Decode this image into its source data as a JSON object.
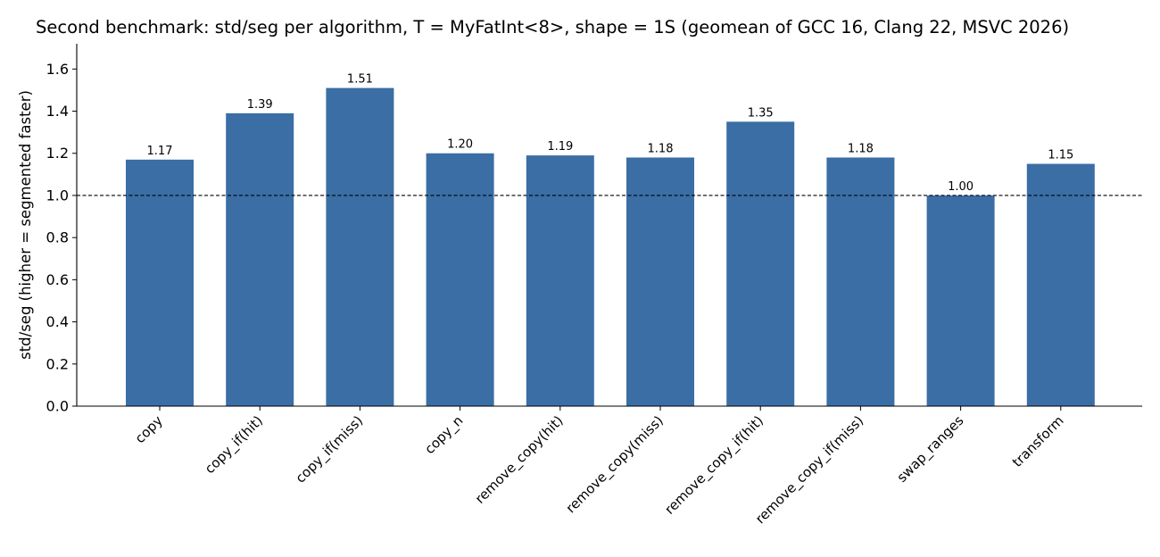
{
  "chart_data": {
    "type": "bar",
    "title": "Second benchmark: std/seg per algorithm, T = MyFatInt<8>, shape = 1S (geomean of GCC 16, Clang 22, MSVC 2026)",
    "xlabel": "",
    "ylabel": "std/seg  (higher = segmented faster)",
    "categories": [
      "copy",
      "copy_if(hit)",
      "copy_if(miss)",
      "copy_n",
      "remove_copy(hit)",
      "remove_copy(miss)",
      "remove_copy_if(hit)",
      "remove_copy_if(miss)",
      "swap_ranges",
      "transform"
    ],
    "values": [
      1.17,
      1.39,
      1.51,
      1.2,
      1.19,
      1.18,
      1.35,
      1.18,
      1.0,
      1.15
    ],
    "value_labels": [
      "1.17",
      "1.39",
      "1.51",
      "1.20",
      "1.19",
      "1.18",
      "1.35",
      "1.18",
      "1.00",
      "1.15"
    ],
    "ylim": [
      0,
      1.72
    ],
    "yticks": [
      "0.0",
      "0.2",
      "0.4",
      "0.6",
      "0.8",
      "1.0",
      "1.2",
      "1.4",
      "1.6"
    ],
    "reference_line": 1.0,
    "grid": false,
    "legend": "none",
    "bar_color": "#3a6ea5"
  }
}
